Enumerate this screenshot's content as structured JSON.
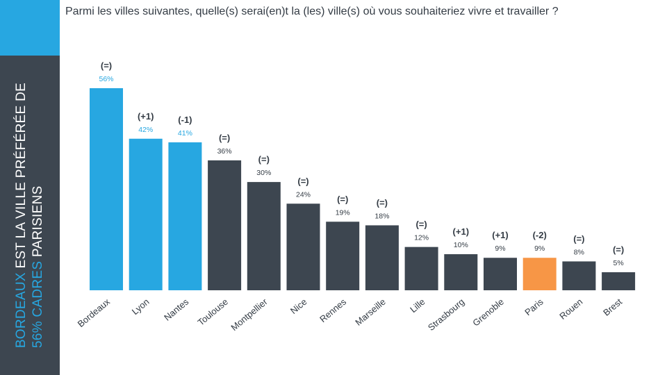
{
  "question": "Parmi les villes suivantes, quelle(s) serai(en)t la (les) ville(s) où vous souhaiteriez vivre et travailler ?",
  "side_title": {
    "line1_highlight": "BORDEAUX",
    "line1_rest": "EST LA VILLE PRÉFÉRÉE DE",
    "line2_highlight": "56% CADRES",
    "line2_rest": "PARISIENS"
  },
  "colors": {
    "highlight": "#27a7e1",
    "dark": "#3d4650",
    "paris": "#f79646",
    "text": "#333b44"
  },
  "chart_data": {
    "type": "bar",
    "categories": [
      "Bordeaux",
      "Lyon",
      "Nantes",
      "Toulouse",
      "Montpellier",
      "Nice",
      "Rennes",
      "Marseille",
      "Lille",
      "Strasbourg",
      "Grenoble",
      "Paris",
      "Rouen",
      "Brest"
    ],
    "values": [
      56,
      42,
      41,
      36,
      30,
      24,
      19,
      18,
      12,
      10,
      9,
      9,
      8,
      5
    ],
    "value_labels": [
      "56%",
      "42%",
      "41%",
      "36%",
      "30%",
      "24%",
      "19%",
      "18%",
      "12%",
      "10%",
      "9%",
      "9%",
      "8%",
      "5%"
    ],
    "changes": [
      "(=)",
      "(+1)",
      "(-1)",
      "(=)",
      "(=)",
      "(=)",
      "(=)",
      "(=)",
      "(=)",
      "(+1)",
      "(+1)",
      "(-2)",
      "(=)",
      "(=)"
    ],
    "bar_colors": [
      "#27a7e1",
      "#27a7e1",
      "#27a7e1",
      "#3d4650",
      "#3d4650",
      "#3d4650",
      "#3d4650",
      "#3d4650",
      "#3d4650",
      "#3d4650",
      "#3d4650",
      "#f79646",
      "#3d4650",
      "#3d4650"
    ],
    "title": "",
    "xlabel": "",
    "ylabel": "",
    "ylim": [
      0,
      60
    ],
    "grid": false,
    "legend": "none"
  }
}
